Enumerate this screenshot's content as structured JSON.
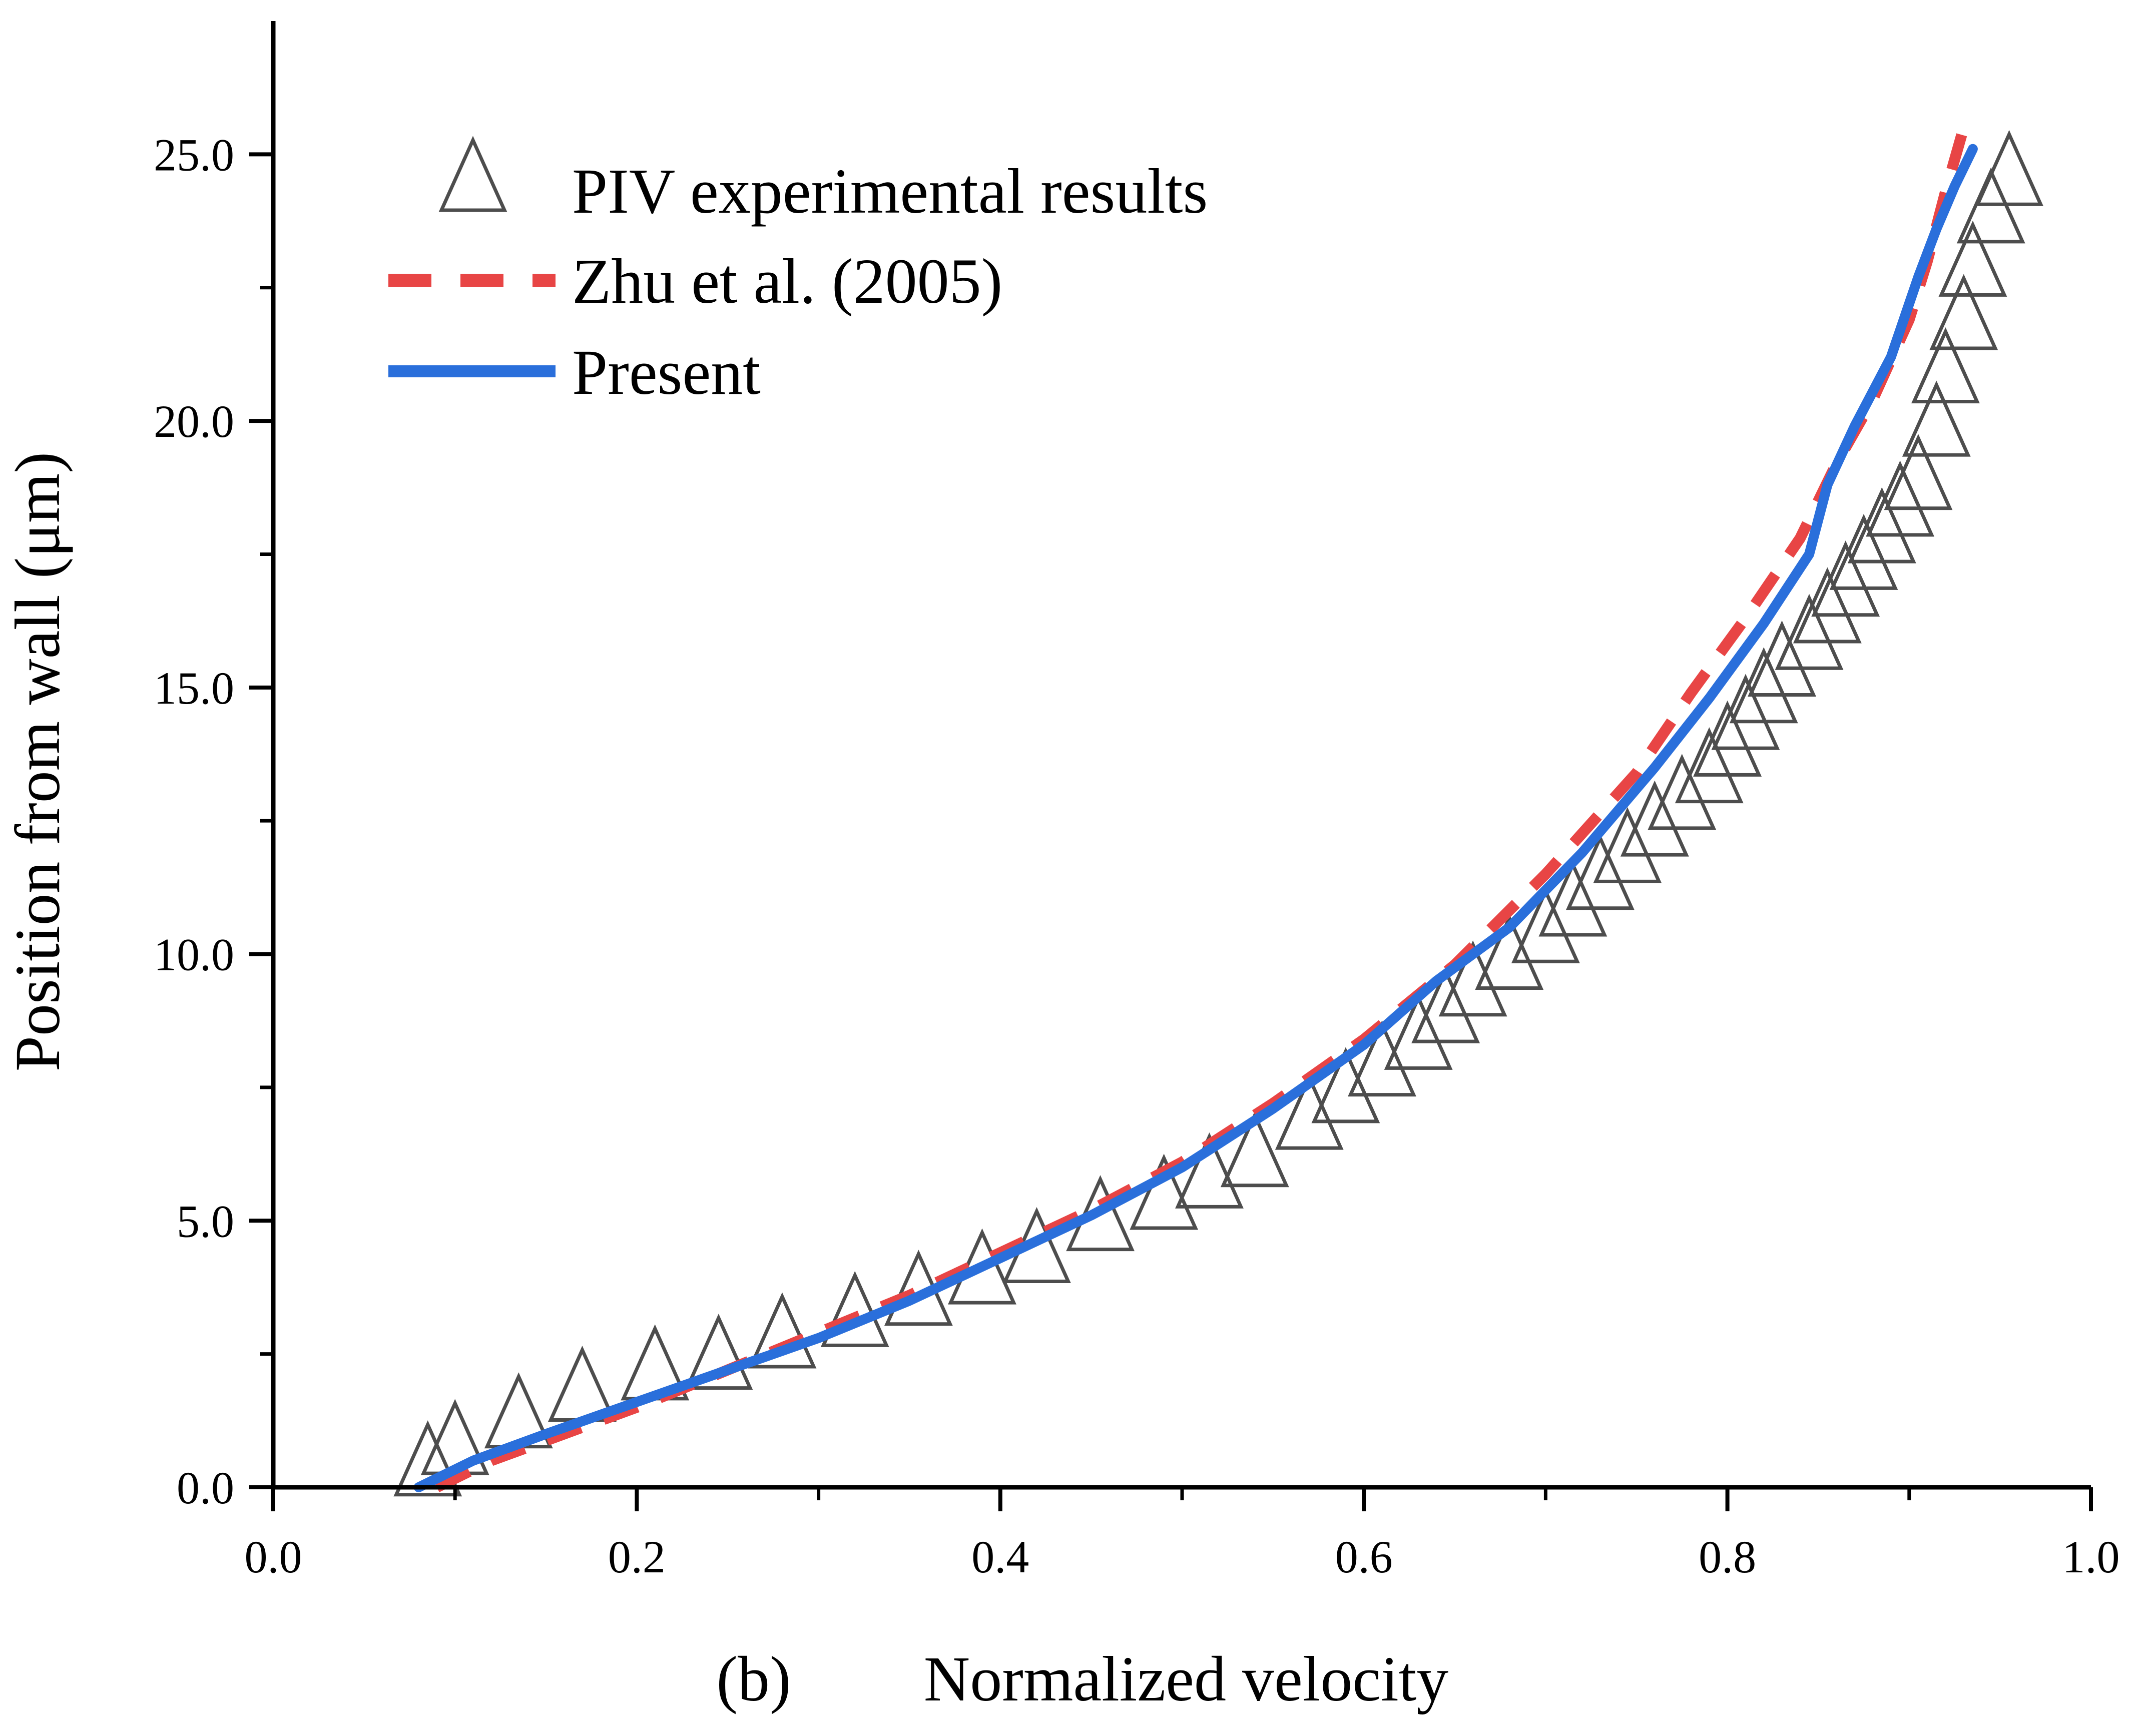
{
  "chart_data": {
    "type": "line",
    "title": "",
    "panel_label": "(b)",
    "xlabel": "Normalized velocity",
    "ylabel": "Position from wall (μm)",
    "xlim": [
      0.0,
      1.0
    ],
    "ylim": [
      0.0,
      27.5
    ],
    "x_ticks": [
      0.0,
      0.2,
      0.4,
      0.6,
      0.8,
      1.0
    ],
    "x_tick_labels": [
      "0.0",
      "0.2",
      "0.4",
      "0.6",
      "0.8",
      "1.0"
    ],
    "y_ticks": [
      0.0,
      5.0,
      10.0,
      15.0,
      20.0,
      25.0
    ],
    "y_tick_labels": [
      "0.0",
      "5.0",
      "10.0",
      "15.0",
      "20.0",
      "25.0"
    ],
    "grid": false,
    "legend_position": "top-left",
    "series": [
      {
        "name": "PIV experimental results",
        "style": "scatter",
        "marker": "open-triangle",
        "color": "#4d4d4d",
        "x": [
          0.085,
          0.1,
          0.135,
          0.17,
          0.21,
          0.245,
          0.28,
          0.32,
          0.355,
          0.39,
          0.42,
          0.455,
          0.49,
          0.515,
          0.54,
          0.57,
          0.59,
          0.61,
          0.63,
          0.645,
          0.66,
          0.68,
          0.7,
          0.715,
          0.73,
          0.745,
          0.76,
          0.775,
          0.79,
          0.8,
          0.81,
          0.82,
          0.83,
          0.845,
          0.855,
          0.865,
          0.875,
          0.885,
          0.895,
          0.905,
          0.915,
          0.92,
          0.93,
          0.935,
          0.945,
          0.955
        ],
        "y": [
          0.3,
          0.7,
          1.2,
          1.7,
          2.1,
          2.3,
          2.7,
          3.1,
          3.5,
          3.9,
          4.3,
          4.9,
          5.3,
          5.7,
          6.1,
          6.8,
          7.3,
          7.8,
          8.3,
          8.8,
          9.3,
          9.8,
          10.3,
          10.8,
          11.3,
          11.8,
          12.3,
          12.8,
          13.3,
          13.8,
          14.3,
          14.8,
          15.3,
          15.8,
          16.3,
          16.8,
          17.3,
          17.8,
          18.3,
          18.8,
          19.8,
          20.8,
          21.8,
          22.8,
          23.8,
          24.5
        ]
      },
      {
        "name": "Zhu et al. (2005)",
        "style": "dashed",
        "color": "#e84545",
        "x": [
          0.09,
          0.12,
          0.16,
          0.2,
          0.25,
          0.3,
          0.35,
          0.4,
          0.45,
          0.5,
          0.55,
          0.6,
          0.65,
          0.7,
          0.75,
          0.78,
          0.81,
          0.84,
          0.86,
          0.88,
          0.9,
          0.91,
          0.92,
          0.93
        ],
        "y": [
          0.0,
          0.5,
          1.0,
          1.5,
          2.2,
          2.9,
          3.6,
          4.4,
          5.2,
          6.1,
          7.2,
          8.4,
          9.8,
          11.5,
          13.4,
          14.9,
          16.3,
          17.8,
          19.2,
          20.4,
          21.9,
          23.0,
          24.3,
          25.5
        ]
      },
      {
        "name": "Present",
        "style": "solid",
        "color": "#2a6fdb",
        "x": [
          0.08,
          0.11,
          0.15,
          0.2,
          0.25,
          0.3,
          0.35,
          0.4,
          0.45,
          0.5,
          0.55,
          0.6,
          0.64,
          0.68,
          0.72,
          0.76,
          0.79,
          0.82,
          0.845,
          0.855,
          0.87,
          0.89,
          0.905,
          0.915,
          0.925,
          0.935
        ],
        "y": [
          0.0,
          0.5,
          1.0,
          1.6,
          2.2,
          2.8,
          3.5,
          4.3,
          5.1,
          6.0,
          7.1,
          8.3,
          9.5,
          10.5,
          11.9,
          13.5,
          14.8,
          16.2,
          17.5,
          18.8,
          19.9,
          21.2,
          22.7,
          23.6,
          24.4,
          25.1
        ]
      }
    ]
  }
}
